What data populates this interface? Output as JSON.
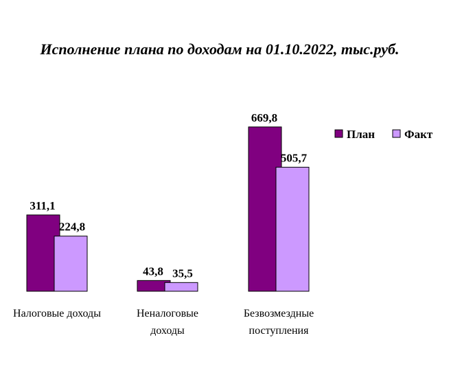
{
  "chart_data": {
    "type": "bar",
    "title": "Исполнение плана по доходам на 01.10.2022, тыс.руб.",
    "categories": [
      [
        "Налоговые доходы"
      ],
      [
        "Неналоговые",
        "доходы"
      ],
      [
        "Безвозмездные",
        "поступления"
      ]
    ],
    "series": [
      {
        "name": "План",
        "values": [
          311.1,
          43.8,
          669.8
        ],
        "labels": [
          "311,1",
          "43,8",
          "669,8"
        ],
        "color": "#800080"
      },
      {
        "name": "Факт",
        "values": [
          224.8,
          35.5,
          505.7
        ],
        "labels": [
          "224,8",
          "35,5",
          "505,7"
        ],
        "color": "#cc99ff"
      }
    ],
    "xlabel": "",
    "ylabel": "",
    "ylim": [
      0,
      700
    ],
    "grid": false,
    "legend": "top-right"
  }
}
